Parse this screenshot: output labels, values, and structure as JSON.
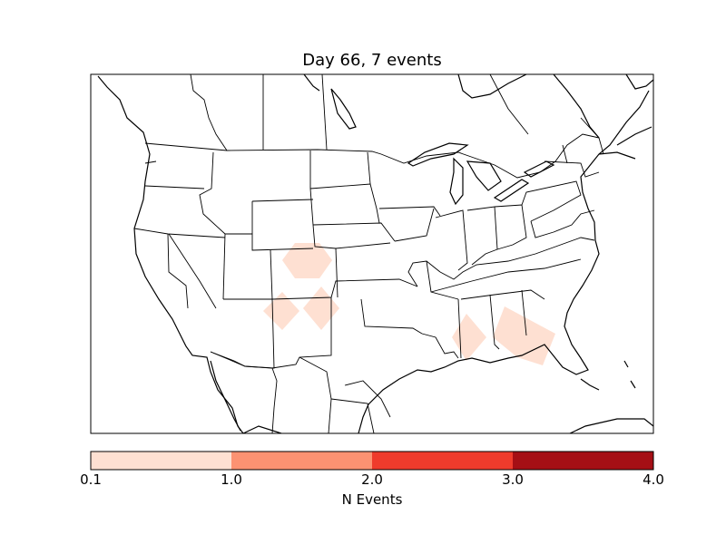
{
  "title": "Day 66, 7 events",
  "colorbar": {
    "label": "N Events",
    "ticks": [
      "0.1",
      "1.0",
      "2.0",
      "3.0",
      "4.0"
    ],
    "bins": [
      {
        "from": 0.1,
        "to": 1.0,
        "color": "#fee0d2"
      },
      {
        "from": 1.0,
        "to": 2.0,
        "color": "#fc9272"
      },
      {
        "from": 2.0,
        "to": 3.0,
        "color": "#ef3b2c"
      },
      {
        "from": 3.0,
        "to": 4.0,
        "color": "#a50f15"
      }
    ]
  },
  "colors": {
    "event_fill": "#fee0d2",
    "outline": "#000000"
  }
}
